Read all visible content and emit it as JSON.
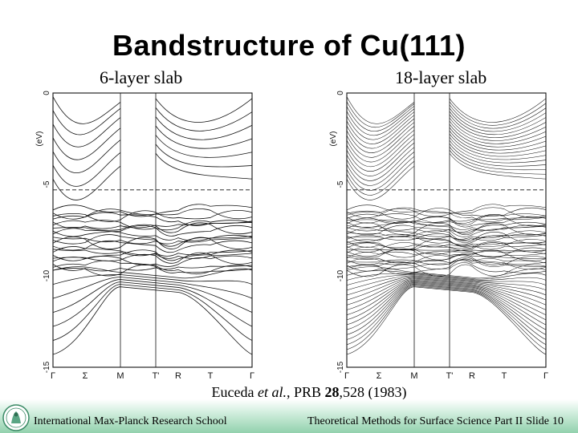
{
  "slide": {
    "title": "Bandstructure of Cu(111)",
    "left_label": "6-layer slab",
    "right_label": "18-layer slab",
    "caption": {
      "authors": "Euceda",
      "etal": "et al.",
      "journal": ", PRB",
      "volume": "28",
      "rest": ",528 (1983)"
    }
  },
  "figure": {
    "y_axis_label": "(eV)",
    "y_ticks": [
      "0",
      "-5",
      "-10",
      "-15"
    ],
    "k_points": [
      "Γ",
      "Σ",
      "M",
      "T'",
      "R",
      "T",
      "Γ"
    ]
  },
  "footer": {
    "school": "International Max-Planck Research School",
    "course": "Theoretical Methods for Surface Science Part II",
    "slide_label": "Slide",
    "slide_number": "10"
  }
}
